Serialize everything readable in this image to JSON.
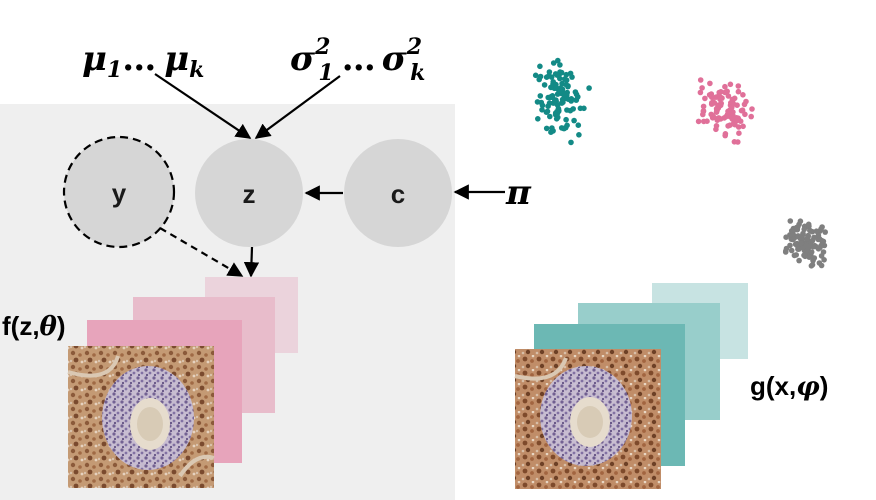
{
  "parameters": {
    "mu_base": "μ",
    "mu_sub1": "1",
    "mu_ellipsis": "…",
    "mu_subk": "k",
    "sigma_base": "σ",
    "sigma_sup": "2",
    "sigma_sub1": "1",
    "sigma_ellipsis": "…",
    "sigma_subk": "k",
    "pi": "π"
  },
  "nodes": {
    "y": "y",
    "z": "z",
    "c": "c"
  },
  "decoder_label": {
    "prefix": "f(z,",
    "theta": "θ",
    "suffix": ")"
  },
  "encoder_label": {
    "prefix": "g(x,",
    "phi": "φ",
    "suffix": ")"
  },
  "colors": {
    "panel": "#efefef",
    "node_fill": "#d6d6d6",
    "cluster_teal": "#138a86",
    "cluster_pink": "#e07099",
    "cluster_gray": "#7f7f7f",
    "decoder_layers": [
      "#ebd3dc",
      "#e8bccb",
      "#e7a4bb"
    ],
    "encoder_layers": [
      "#c7e3e2",
      "#98cecb",
      "#6cb8b4"
    ],
    "tissue_brown": "#8b5a3a",
    "tissue_purple": "#8a7aa8"
  },
  "chart_data": {
    "type": "scatter",
    "series": [
      {
        "color": "#138a86",
        "points": "cluster-1"
      },
      {
        "color": "#e07099",
        "points": "cluster-2"
      },
      {
        "color": "#7f7f7f",
        "points": "cluster-3"
      }
    ]
  }
}
